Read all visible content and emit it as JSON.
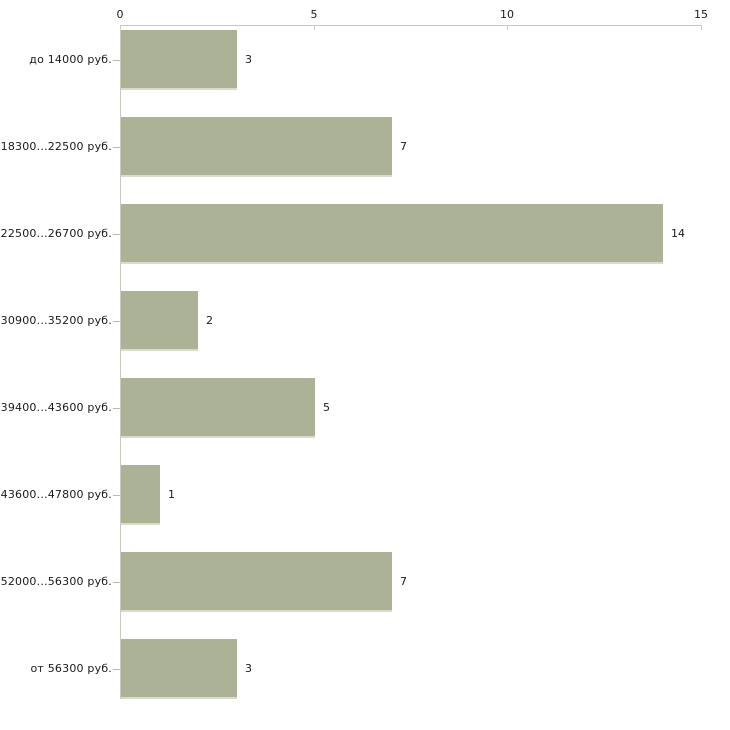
{
  "chart_data": {
    "type": "bar",
    "orientation": "horizontal",
    "categories": [
      "до 14000 руб.",
      "18300...22500 руб.",
      "22500...26700 руб.",
      "30900...35200 руб.",
      "39400...43600 руб.",
      "43600...47800 руб.",
      "52000...56300 руб.",
      "от 56300 руб."
    ],
    "values": [
      3,
      7,
      14,
      2,
      5,
      1,
      7,
      3
    ],
    "value_labels": [
      "3",
      "7",
      "14",
      "2",
      "5",
      "1",
      "7",
      "3"
    ],
    "xlim": [
      0,
      15
    ],
    "x_ticks": [
      0,
      5,
      10,
      15
    ],
    "x_tick_labels": [
      "0",
      "5",
      "10",
      "15"
    ],
    "axis_position": "top",
    "grid": false,
    "legend": "none",
    "colors": {
      "bar_fill": "#acb295",
      "bar_bevel": "#d9dcca",
      "axis_line": "#c8cabf",
      "x_tick": "#ccd0ae",
      "y_tick": "#b7bbae",
      "text": "#1a1a1a",
      "background": "#ffffff"
    }
  }
}
